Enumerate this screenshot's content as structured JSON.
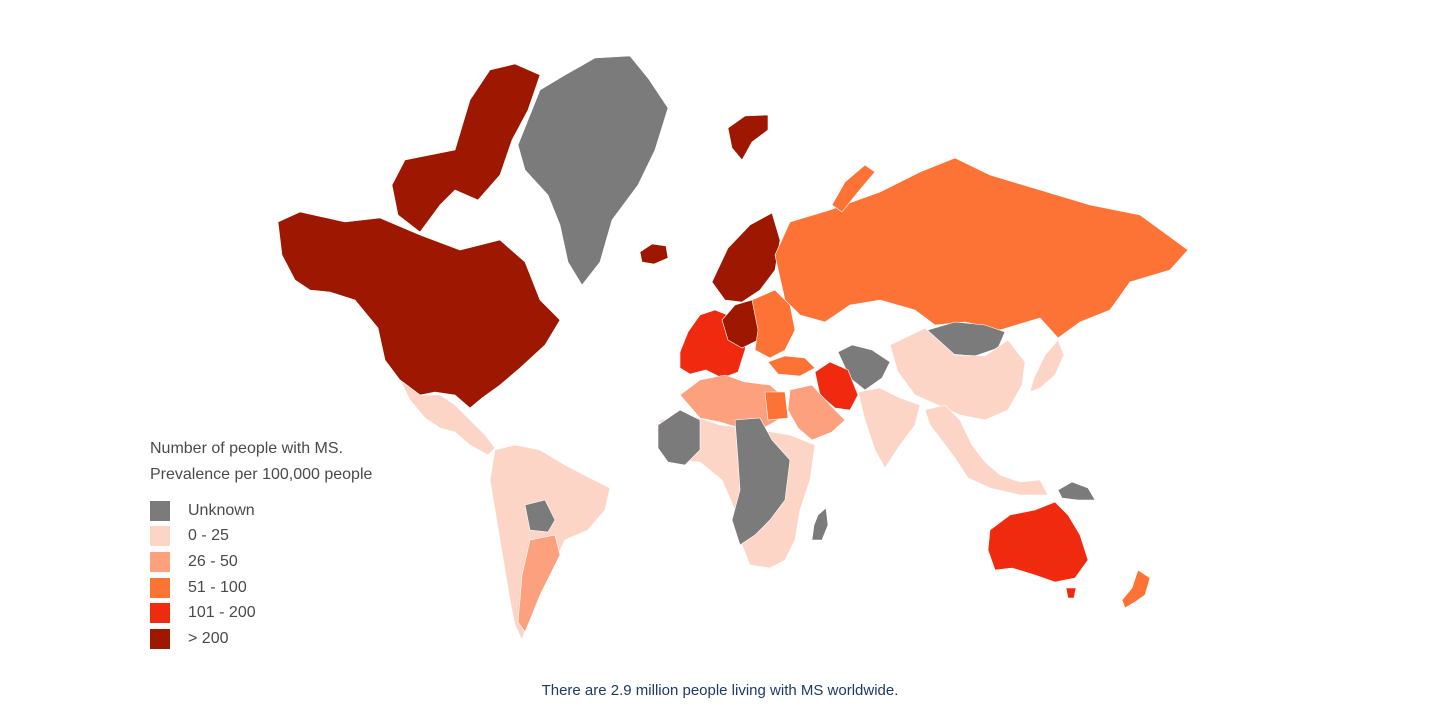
{
  "legend": {
    "title_line1": "Number of people with MS.",
    "title_line2": "Prevalence per 100,000 people",
    "items": [
      {
        "label": "Unknown",
        "color": "#7b7b7b"
      },
      {
        "label": "0 - 25",
        "color": "#fdd5c7"
      },
      {
        "label": "26 - 50",
        "color": "#fca07e"
      },
      {
        "label": "51 - 100",
        "color": "#fd7336"
      },
      {
        "label": "101 - 200",
        "color": "#ef2a0f"
      },
      {
        "label": "> 200",
        "color": "#9e1700"
      }
    ]
  },
  "caption": "There are 2.9 million people living with MS worldwide.",
  "regions": [
    {
      "name": "north-america",
      "category": "> 200"
    },
    {
      "name": "canadian-arctic-islands",
      "category": "> 200"
    },
    {
      "name": "greenland",
      "category": "Unknown"
    },
    {
      "name": "iceland",
      "category": "> 200"
    },
    {
      "name": "svalbard",
      "category": "> 200"
    },
    {
      "name": "scandinavia",
      "category": "> 200"
    },
    {
      "name": "western-europe",
      "category": "101 - 200"
    },
    {
      "name": "central-europe",
      "category": "> 200"
    },
    {
      "name": "eastern-europe",
      "category": "51 - 100"
    },
    {
      "name": "russia",
      "category": "51 - 100"
    },
    {
      "name": "novaya-zemlya",
      "category": "51 - 100"
    },
    {
      "name": "mongolia",
      "category": "Unknown"
    },
    {
      "name": "china",
      "category": "0 - 25"
    },
    {
      "name": "japan",
      "category": "0 - 25"
    },
    {
      "name": "central-asia-unknown",
      "category": "Unknown"
    },
    {
      "name": "iran",
      "category": "101 - 200"
    },
    {
      "name": "turkey",
      "category": "51 - 100"
    },
    {
      "name": "middle-east",
      "category": "26 - 50"
    },
    {
      "name": "india",
      "category": "0 - 25"
    },
    {
      "name": "southeast-asia",
      "category": "0 - 25"
    },
    {
      "name": "mexico-central-america",
      "category": "0 - 25"
    },
    {
      "name": "south-america",
      "category": "0 - 25"
    },
    {
      "name": "argentina",
      "category": "26 - 50"
    },
    {
      "name": "bolivia-paraguay",
      "category": "Unknown"
    },
    {
      "name": "north-africa",
      "category": "26 - 50"
    },
    {
      "name": "egypt",
      "category": "51 - 100"
    },
    {
      "name": "sub-saharan-africa",
      "category": "0 - 25"
    },
    {
      "name": "central-africa-unknown",
      "category": "Unknown"
    },
    {
      "name": "madagascar",
      "category": "Unknown"
    },
    {
      "name": "australia",
      "category": "101 - 200"
    },
    {
      "name": "tasmania",
      "category": "101 - 200"
    },
    {
      "name": "new-zealand",
      "category": "51 - 100"
    },
    {
      "name": "papua-new-guinea",
      "category": "Unknown"
    }
  ]
}
